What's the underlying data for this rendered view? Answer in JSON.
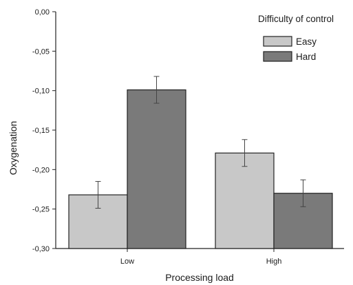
{
  "chart_data": {
    "type": "bar",
    "title": "",
    "xlabel": "Processing load",
    "ylabel": "Oxygenation",
    "categories": [
      "Low",
      "High"
    ],
    "ylim": [
      -0.3,
      0.0
    ],
    "yticks": [
      "0,00",
      "-0,05",
      "-0,10",
      "-0,15",
      "-0,20",
      "-0,25",
      "-0,30"
    ],
    "ytick_values": [
      0.0,
      -0.05,
      -0.1,
      -0.15,
      -0.2,
      -0.25,
      -0.3
    ],
    "legend": {
      "title": "Difficulty of control",
      "placement": "top-right"
    },
    "series": [
      {
        "name": "Easy",
        "color": "#c8c8c8",
        "values": [
          -0.232,
          -0.179
        ],
        "error": [
          0.017,
          0.017
        ]
      },
      {
        "name": "Hard",
        "color": "#7a7a7a",
        "values": [
          -0.099,
          -0.23
        ],
        "error": [
          0.017,
          0.017
        ]
      }
    ],
    "grid": false
  }
}
